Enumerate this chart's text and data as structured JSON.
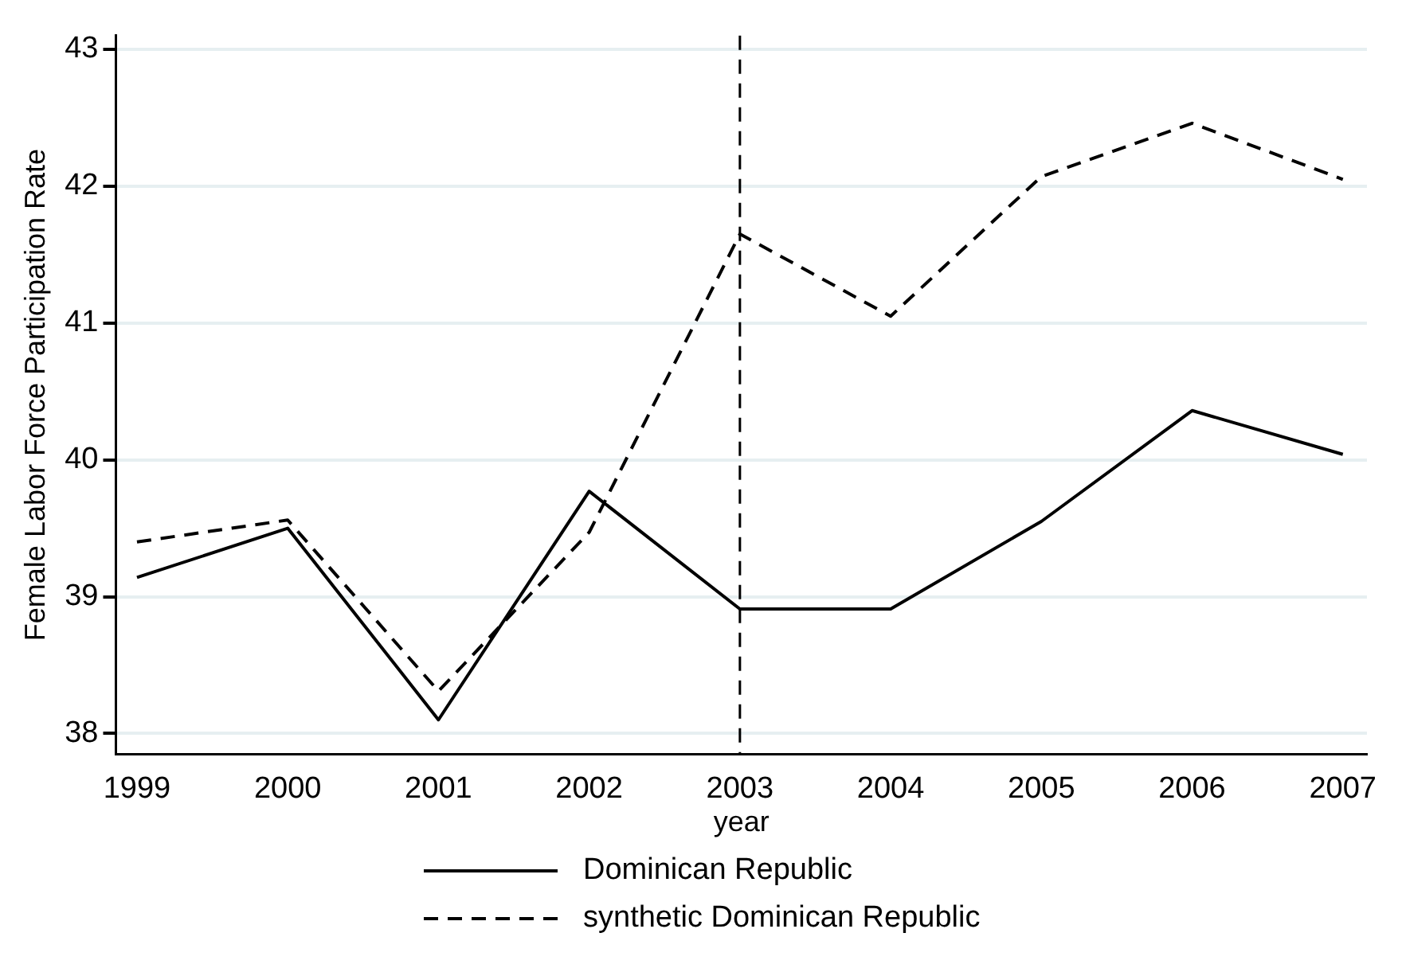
{
  "chart_data": {
    "type": "line",
    "xlabel": "year",
    "ylabel": "Female Labor Force Participation Rate",
    "x": [
      1999,
      2000,
      2001,
      2002,
      2003,
      2004,
      2005,
      2006,
      2007
    ],
    "series": [
      {
        "name": "Dominican Republic",
        "color": "#000000",
        "line_style": "solid",
        "values": [
          39.14,
          39.5,
          38.1,
          39.77,
          38.91,
          38.91,
          39.55,
          40.36,
          40.04
        ]
      },
      {
        "name": "synthetic Dominican Republic",
        "color": "#000000",
        "line_style": "dashed",
        "values": [
          39.4,
          39.56,
          38.31,
          39.47,
          41.65,
          41.05,
          42.07,
          42.46,
          42.05
        ]
      }
    ],
    "xlim": [
      1998.86,
      2007.16
    ],
    "xticks": [
      1999,
      2000,
      2001,
      2002,
      2003,
      2004,
      2005,
      2006,
      2007
    ],
    "ylim": [
      37.85,
      43.1
    ],
    "yticks": [
      38,
      39,
      40,
      41,
      42,
      43
    ],
    "ref_lines": [
      {
        "axis": "x",
        "value": 2003,
        "color": "#000000",
        "line_style": "dashed"
      }
    ],
    "grid": "y",
    "legend": "bottom",
    "marker": "none"
  }
}
